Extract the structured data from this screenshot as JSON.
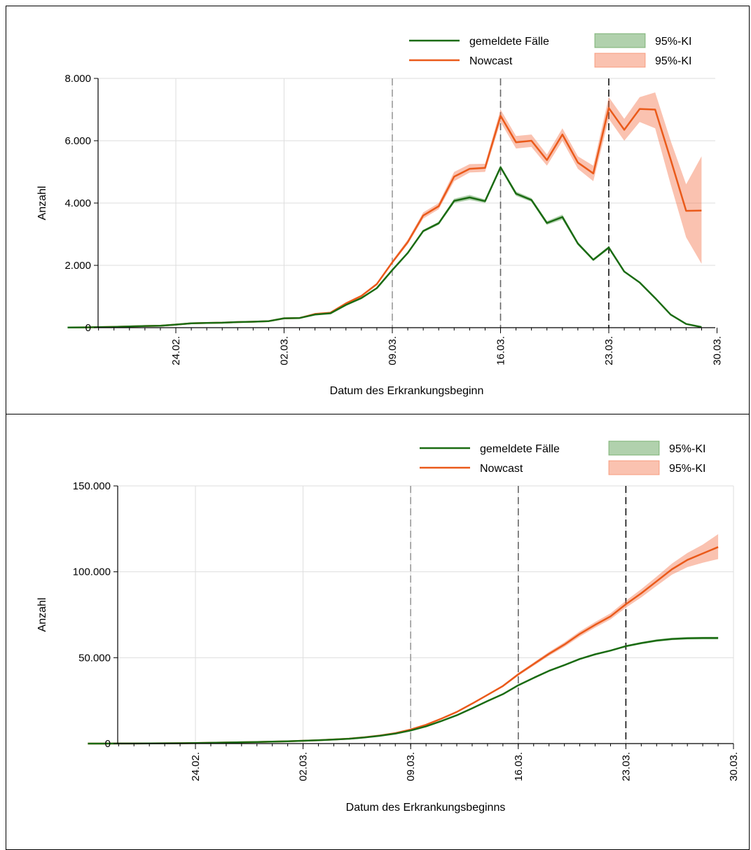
{
  "chart_data": [
    {
      "type": "line",
      "xlabel": "Datum des Erkrankungsbeginn",
      "ylabel": "Anzahl",
      "ylim": [
        0,
        8000
      ],
      "yticks": [
        0,
        2000,
        4000,
        6000,
        8000
      ],
      "ytick_labels": [
        "0",
        "2.000",
        "4.000",
        "6.000",
        "8.000"
      ],
      "xtick_labels": [
        "24.02.",
        "02.03.",
        "09.03.",
        "16.03.",
        "23.03.",
        "30.03."
      ],
      "x_dates": [
        "17.02.",
        "18.02.",
        "19.02.",
        "20.02.",
        "21.02.",
        "22.02.",
        "23.02.",
        "24.02.",
        "25.02.",
        "26.02.",
        "27.02.",
        "28.02.",
        "29.02.",
        "01.03.",
        "02.03.",
        "03.03.",
        "04.03.",
        "05.03.",
        "06.03.",
        "07.03.",
        "08.03.",
        "09.03.",
        "10.03.",
        "11.03.",
        "12.03.",
        "13.03.",
        "14.03.",
        "15.03.",
        "16.03.",
        "17.03.",
        "18.03.",
        "19.03.",
        "20.03.",
        "21.03.",
        "22.03.",
        "23.03.",
        "24.03.",
        "25.03.",
        "26.03.",
        "27.03.",
        "28.03.",
        "29.03."
      ],
      "vlines": [
        {
          "x": "09.03.",
          "color": "#999999"
        },
        {
          "x": "16.03.",
          "color": "#666666"
        },
        {
          "x": "23.03.",
          "color": "#111111"
        }
      ],
      "legend": {
        "lines": [
          "gemeldete Fälle",
          "Nowcast"
        ],
        "bands": [
          "95%-KI",
          "95%-KI"
        ]
      },
      "series": [
        {
          "name": "gemeldete Fälle",
          "color": "#1a6b12",
          "values": [
            5,
            10,
            15,
            25,
            40,
            55,
            60,
            100,
            140,
            150,
            160,
            180,
            190,
            210,
            300,
            310,
            420,
            460,
            730,
            950,
            1270,
            1850,
            2400,
            3100,
            3350,
            4070,
            4180,
            4060,
            5150,
            4300,
            4100,
            3360,
            3550,
            2700,
            2180,
            2570,
            1800,
            1450,
            950,
            420,
            120,
            20
          ],
          "ci_low": [
            5,
            10,
            15,
            25,
            40,
            55,
            60,
            100,
            140,
            150,
            160,
            180,
            190,
            210,
            300,
            310,
            420,
            460,
            730,
            950,
            1270,
            1850,
            2380,
            3060,
            3300,
            4000,
            4100,
            4000,
            5100,
            4230,
            4040,
            3300,
            3470,
            2650,
            2140,
            2520,
            1780,
            1430,
            940,
            410,
            115,
            18
          ],
          "ci_high": [
            5,
            10,
            15,
            25,
            40,
            55,
            60,
            100,
            140,
            150,
            160,
            180,
            190,
            210,
            300,
            310,
            420,
            460,
            730,
            950,
            1270,
            1850,
            2420,
            3140,
            3400,
            4140,
            4260,
            4120,
            5200,
            4370,
            4160,
            3420,
            3630,
            2750,
            2220,
            2620,
            1820,
            1470,
            960,
            430,
            125,
            22
          ]
        },
        {
          "name": "Nowcast",
          "color": "#ea5a1a",
          "values": [
            5,
            10,
            15,
            25,
            40,
            55,
            60,
            100,
            140,
            150,
            160,
            180,
            190,
            210,
            300,
            310,
            440,
            480,
            780,
            1020,
            1400,
            2100,
            2750,
            3600,
            3900,
            4850,
            5100,
            5130,
            6800,
            5950,
            6000,
            5380,
            6200,
            5300,
            4950,
            7050,
            6350,
            7020,
            7000,
            5400,
            3750,
            3760
          ],
          "ci_low": [
            5,
            10,
            15,
            25,
            40,
            55,
            60,
            100,
            140,
            150,
            160,
            180,
            190,
            210,
            300,
            310,
            430,
            470,
            760,
            990,
            1360,
            2050,
            2680,
            3500,
            3800,
            4700,
            4980,
            5000,
            6600,
            5750,
            5800,
            5200,
            6000,
            5100,
            4700,
            6700,
            6000,
            6600,
            6400,
            4600,
            2900,
            2050
          ],
          "ci_high": [
            5,
            10,
            15,
            25,
            40,
            55,
            60,
            100,
            140,
            150,
            160,
            180,
            190,
            210,
            300,
            310,
            460,
            500,
            800,
            1050,
            1440,
            2150,
            2830,
            3700,
            4000,
            5000,
            5250,
            5260,
            7000,
            6150,
            6200,
            5560,
            6400,
            5500,
            5200,
            7400,
            6700,
            7400,
            7550,
            6000,
            4600,
            5500
          ]
        }
      ]
    },
    {
      "type": "line",
      "xlabel": "Datum des Erkrankungsbeginns",
      "ylabel": "Anzahl",
      "ylim": [
        0,
        150000
      ],
      "yticks": [
        0,
        50000,
        100000,
        150000
      ],
      "ytick_labels": [
        "0",
        "50.000",
        "100.000",
        "150.000"
      ],
      "xtick_labels": [
        "24.02.",
        "02.03.",
        "09.03.",
        "16.03.",
        "23.03.",
        "30.03."
      ],
      "x_dates": [
        "17.02.",
        "18.02.",
        "19.02.",
        "20.02.",
        "21.02.",
        "22.02.",
        "23.02.",
        "24.02.",
        "25.02.",
        "26.02.",
        "27.02.",
        "28.02.",
        "29.02.",
        "01.03.",
        "02.03.",
        "03.03.",
        "04.03.",
        "05.03.",
        "06.03.",
        "07.03.",
        "08.03.",
        "09.03.",
        "10.03.",
        "11.03.",
        "12.03.",
        "13.03.",
        "14.03.",
        "15.03.",
        "16.03.",
        "17.03.",
        "18.03.",
        "19.03.",
        "20.03.",
        "21.03.",
        "22.03.",
        "23.03.",
        "24.03.",
        "25.03.",
        "26.03.",
        "27.03.",
        "28.03.",
        "29.03."
      ],
      "vlines": [
        {
          "x": "09.03.",
          "color": "#999999"
        },
        {
          "x": "16.03.",
          "color": "#666666"
        },
        {
          "x": "23.03.",
          "color": "#111111"
        }
      ],
      "legend": {
        "lines": [
          "gemeldete Fälle",
          "Nowcast"
        ],
        "bands": [
          "95%-KI",
          "95%-KI"
        ]
      },
      "series": [
        {
          "name": "gemeldete Fälle",
          "color": "#1a6b12",
          "values": [
            5,
            15,
            30,
            55,
            95,
            150,
            210,
            310,
            450,
            600,
            760,
            940,
            1130,
            1340,
            1640,
            1950,
            2370,
            2830,
            3560,
            4510,
            5780,
            7630,
            10030,
            13130,
            16480,
            20550,
            24730,
            28790,
            33940,
            38240,
            42340,
            45700,
            49250,
            51950,
            54130,
            56700,
            58500,
            59950,
            60900,
            61320,
            61440,
            61460
          ],
          "ci_low": [
            5,
            15,
            30,
            55,
            95,
            150,
            210,
            310,
            450,
            600,
            760,
            940,
            1130,
            1340,
            1640,
            1950,
            2370,
            2830,
            3560,
            4510,
            5780,
            7630,
            10000,
            13080,
            16400,
            20450,
            24600,
            28630,
            33750,
            38000,
            42050,
            45350,
            48850,
            51500,
            53650,
            56150,
            57900,
            59300,
            60200,
            60600,
            60700,
            60700
          ],
          "ci_high": [
            5,
            15,
            30,
            55,
            95,
            150,
            210,
            310,
            450,
            600,
            760,
            940,
            1130,
            1340,
            1640,
            1950,
            2370,
            2830,
            3560,
            4510,
            5780,
            7630,
            10060,
            13180,
            16560,
            20650,
            24860,
            28950,
            34130,
            38480,
            42630,
            46050,
            49650,
            52400,
            54610,
            57250,
            59100,
            60600,
            61600,
            62040,
            62180,
            62220
          ]
        },
        {
          "name": "Nowcast",
          "color": "#ea5a1a",
          "values": [
            5,
            15,
            30,
            55,
            95,
            150,
            210,
            310,
            450,
            600,
            760,
            940,
            1130,
            1340,
            1640,
            1950,
            2390,
            2870,
            3650,
            4670,
            6070,
            8170,
            10920,
            14520,
            18420,
            23270,
            28370,
            33500,
            40300,
            46250,
            52250,
            57630,
            63830,
            69130,
            74080,
            81130,
            87480,
            94500,
            101500,
            106900,
            110650,
            114410
          ],
          "ci_low": [
            5,
            15,
            30,
            55,
            95,
            150,
            210,
            310,
            450,
            600,
            760,
            940,
            1130,
            1340,
            1640,
            1950,
            2380,
            2850,
            3620,
            4620,
            6000,
            8080,
            10800,
            14350,
            18200,
            22950,
            27950,
            32900,
            39500,
            45300,
            51100,
            56300,
            62300,
            67500,
            72300,
            79100,
            85100,
            91800,
            98300,
            102700,
            105300,
            107400
          ],
          "ci_high": [
            5,
            15,
            30,
            55,
            95,
            150,
            210,
            310,
            450,
            600,
            760,
            940,
            1130,
            1340,
            1640,
            1950,
            2400,
            2890,
            3680,
            4720,
            6140,
            8260,
            11040,
            14690,
            18640,
            23590,
            28790,
            34100,
            41100,
            47200,
            53400,
            58960,
            65360,
            70760,
            75860,
            83160,
            89860,
            97200,
            104800,
            111000,
            115800,
            121900
          ]
        }
      ]
    }
  ]
}
